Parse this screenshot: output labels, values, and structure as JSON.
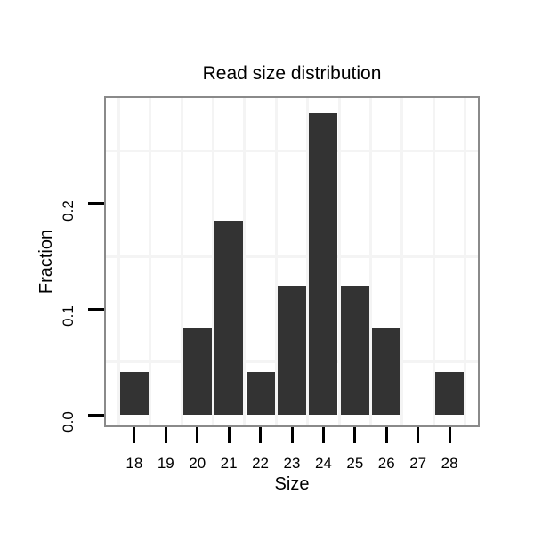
{
  "chart_data": {
    "type": "bar",
    "title": "Read size distribution",
    "xlabel": "Size",
    "ylabel": "Fraction",
    "categories": [
      18,
      19,
      20,
      21,
      22,
      23,
      24,
      25,
      26,
      27,
      28
    ],
    "values": [
      0.0408,
      0,
      0.0816,
      0.1837,
      0.0408,
      0.1224,
      0.2857,
      0.1224,
      0.0816,
      0,
      0.0408
    ],
    "bar_width_units": 0.9,
    "x_tick_labels": [
      "18",
      "19",
      "20",
      "21",
      "22",
      "23",
      "24",
      "25",
      "26",
      "27",
      "28"
    ],
    "y_tick_values": [
      0,
      0.1,
      0.2
    ],
    "y_tick_labels": [
      "0.0",
      "0.1",
      "0.2"
    ],
    "xlim": [
      17.1,
      28.9
    ],
    "ylim": [
      -0.01,
      0.3
    ],
    "grid": {
      "vertical_minor": [
        17.5,
        18.5,
        19.5,
        20.5,
        21.5,
        22.5,
        23.5,
        24.5,
        25.5,
        26.5,
        27.5,
        28.5
      ],
      "horizontal_minor": [
        0.05,
        0.15,
        0.25
      ],
      "major_lines_visible": false
    },
    "legend": null,
    "colors": {
      "bar": "#333333",
      "panel_border": "#8a8a8a",
      "panel_background": "#ffffff",
      "gridline": "#f4f4f4",
      "tick": "#000000",
      "text": "#000000",
      "background": "#ffffff"
    }
  }
}
